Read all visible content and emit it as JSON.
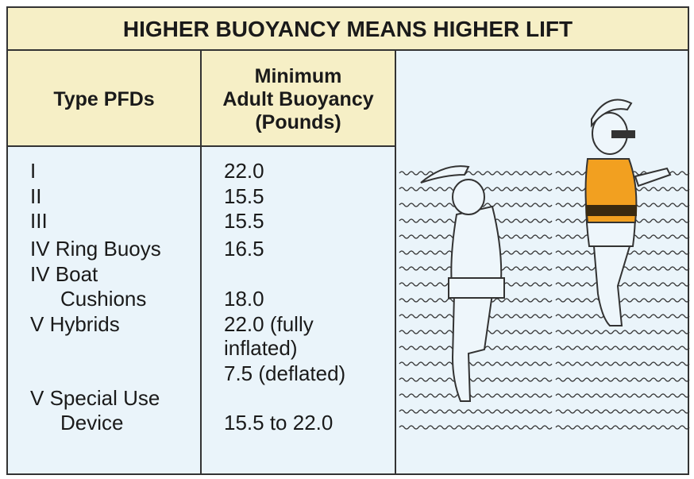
{
  "title": "HIGHER BUOYANCY MEANS HIGHER LIFT",
  "table": {
    "headers": [
      [
        "Type PFDs"
      ],
      [
        "Minimum",
        "Adult Buoyancy",
        "(Pounds)"
      ]
    ],
    "rows": [
      {
        "type": [
          "I"
        ],
        "buoyancy": [
          "22.0"
        ]
      },
      {
        "type": [
          "II"
        ],
        "buoyancy": [
          "15.5"
        ]
      },
      {
        "type": [
          "III"
        ],
        "buoyancy": [
          "15.5"
        ]
      },
      {
        "type": [
          "IV Ring Buoys"
        ],
        "buoyancy": [
          "16.5"
        ]
      },
      {
        "type": [
          "IV Boat",
          "Cushions"
        ],
        "buoyancy": [
          "18.0"
        ]
      },
      {
        "type": [
          "V Hybrids"
        ],
        "buoyancy": [
          "22.0 (fully",
          "inflated)",
          "7.5 (deflated)"
        ]
      },
      {
        "type": [
          "V Special Use",
          "Device"
        ],
        "buoyancy": [
          "15.5 to 22.0"
        ]
      }
    ]
  }
}
